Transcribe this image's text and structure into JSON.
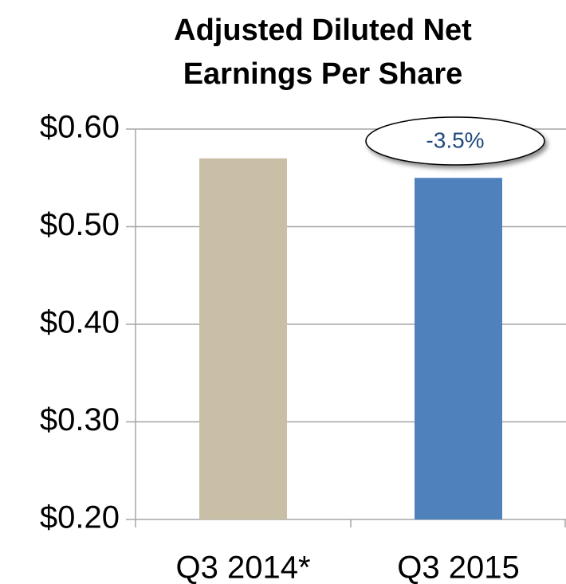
{
  "chart_data": {
    "type": "bar",
    "title": [
      "Adjusted Diluted Net",
      "Earnings Per Share"
    ],
    "categories": [
      "Q3 2014*",
      "Q3 2015"
    ],
    "values": [
      0.57,
      0.55
    ],
    "colors": [
      "#c9bfa7",
      "#4f81bd"
    ],
    "ylim": [
      0.2,
      0.6
    ],
    "yticks": [
      {
        "value": 0.2,
        "label": "$0.20"
      },
      {
        "value": 0.3,
        "label": "$0.30"
      },
      {
        "value": 0.4,
        "label": "$0.40"
      },
      {
        "value": 0.5,
        "label": "$0.50"
      },
      {
        "value": 0.6,
        "label": "$0.60"
      }
    ],
    "grid": true,
    "annotation": "-3.5%"
  }
}
